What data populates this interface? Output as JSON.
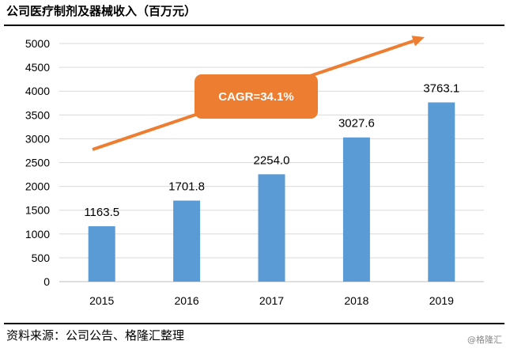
{
  "header": {
    "title": "公司医疗制剂及器械收入（百万元）"
  },
  "footer": {
    "source": "资料来源：公司公告、格隆汇整理",
    "watermark": "@格隆汇"
  },
  "colors": {
    "bar": "#5b9bd5",
    "trend_arrow": "#ed7d31",
    "badge": "#ed7d31",
    "grid": "#d9d9d9"
  },
  "chart_data": {
    "type": "bar",
    "title": "公司医疗制剂及器械收入（百万元）",
    "categories": [
      "2015",
      "2016",
      "2017",
      "2018",
      "2019"
    ],
    "values": [
      1163.5,
      1701.8,
      2254.0,
      3027.6,
      3763.1
    ],
    "value_labels": [
      "1163.5",
      "1701.8",
      "2254.0",
      "3027.6",
      "3763.1"
    ],
    "ylim": [
      0,
      5000
    ],
    "yticks": [
      0,
      500,
      1000,
      1500,
      2000,
      2500,
      3000,
      3500,
      4000,
      4500,
      5000
    ],
    "grid": true,
    "legend": "none",
    "annotation": {
      "text": "CAGR=34.1%",
      "type": "trend-arrow-badge"
    }
  }
}
